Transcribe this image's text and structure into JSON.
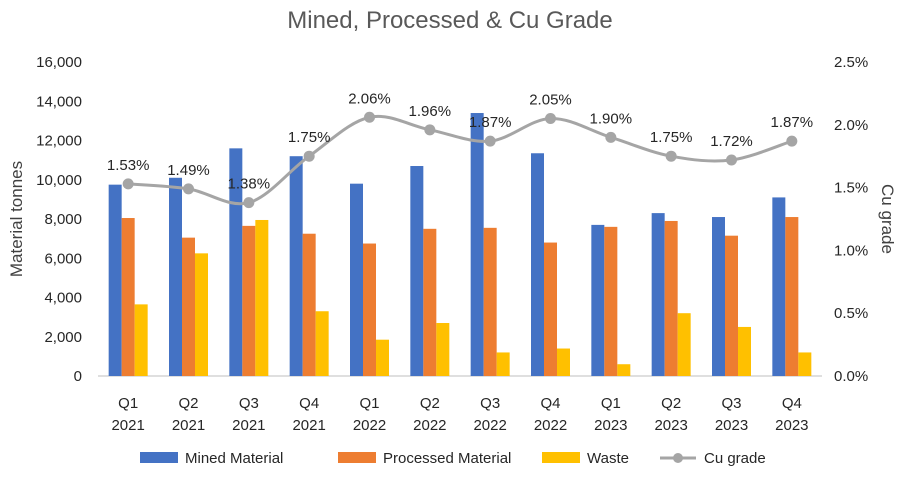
{
  "chart_data": {
    "type": "bar",
    "title": "Mined, Processed & Cu Grade",
    "categories": [
      [
        "Q1",
        "2021"
      ],
      [
        "Q2",
        "2021"
      ],
      [
        "Q3",
        "2021"
      ],
      [
        "Q4",
        "2021"
      ],
      [
        "Q1",
        "2022"
      ],
      [
        "Q2",
        "2022"
      ],
      [
        "Q3",
        "2022"
      ],
      [
        "Q4",
        "2022"
      ],
      [
        "Q1",
        "2023"
      ],
      [
        "Q2",
        "2023"
      ],
      [
        "Q3",
        "2023"
      ],
      [
        "Q4",
        "2023"
      ]
    ],
    "ylabel": "Material tonnes",
    "y2label": "Cu grade",
    "ylim": [
      0,
      16000
    ],
    "yticks": [
      0,
      2000,
      4000,
      6000,
      8000,
      10000,
      12000,
      14000,
      16000
    ],
    "ytick_labels": [
      "0",
      "2,000",
      "4,000",
      "6,000",
      "8,000",
      "10,000",
      "12,000",
      "14,000",
      "16,000"
    ],
    "y2lim": [
      0,
      2.5
    ],
    "y2ticks": [
      0,
      0.5,
      1.0,
      1.5,
      2.0,
      2.5
    ],
    "y2tick_labels": [
      "0.0%",
      "0.5%",
      "1.0%",
      "1.5%",
      "2.0%",
      "2.5%"
    ],
    "series": [
      {
        "name": "Mined Material",
        "kind": "bar",
        "axis": "left",
        "color": "#4472C4",
        "values": [
          9750,
          10100,
          11600,
          11200,
          9800,
          10700,
          13400,
          11350,
          7700,
          8300,
          8100,
          9100
        ]
      },
      {
        "name": "Processed Material",
        "kind": "bar",
        "axis": "left",
        "color": "#ED7D31",
        "values": [
          8050,
          7050,
          7650,
          7250,
          6750,
          7500,
          7550,
          6800,
          7600,
          7900,
          7150,
          8100
        ]
      },
      {
        "name": "Waste",
        "kind": "bar",
        "axis": "left",
        "color": "#FFC000",
        "values": [
          3650,
          6250,
          7950,
          3300,
          1850,
          2700,
          1200,
          1400,
          600,
          3200,
          2500,
          1200
        ]
      },
      {
        "name": "Cu grade",
        "kind": "line",
        "axis": "right",
        "color": "#A5A5A5",
        "values": [
          1.53,
          1.49,
          1.38,
          1.75,
          2.06,
          1.96,
          1.87,
          2.05,
          1.9,
          1.75,
          1.72,
          1.87
        ],
        "labels": [
          "1.53%",
          "1.49%",
          "1.38%",
          "1.75%",
          "2.06%",
          "1.96%",
          "1.87%",
          "2.05%",
          "1.90%",
          "1.75%",
          "1.72%",
          "1.87%"
        ]
      }
    ],
    "legend": {
      "position": "bottom"
    },
    "grid": false
  }
}
